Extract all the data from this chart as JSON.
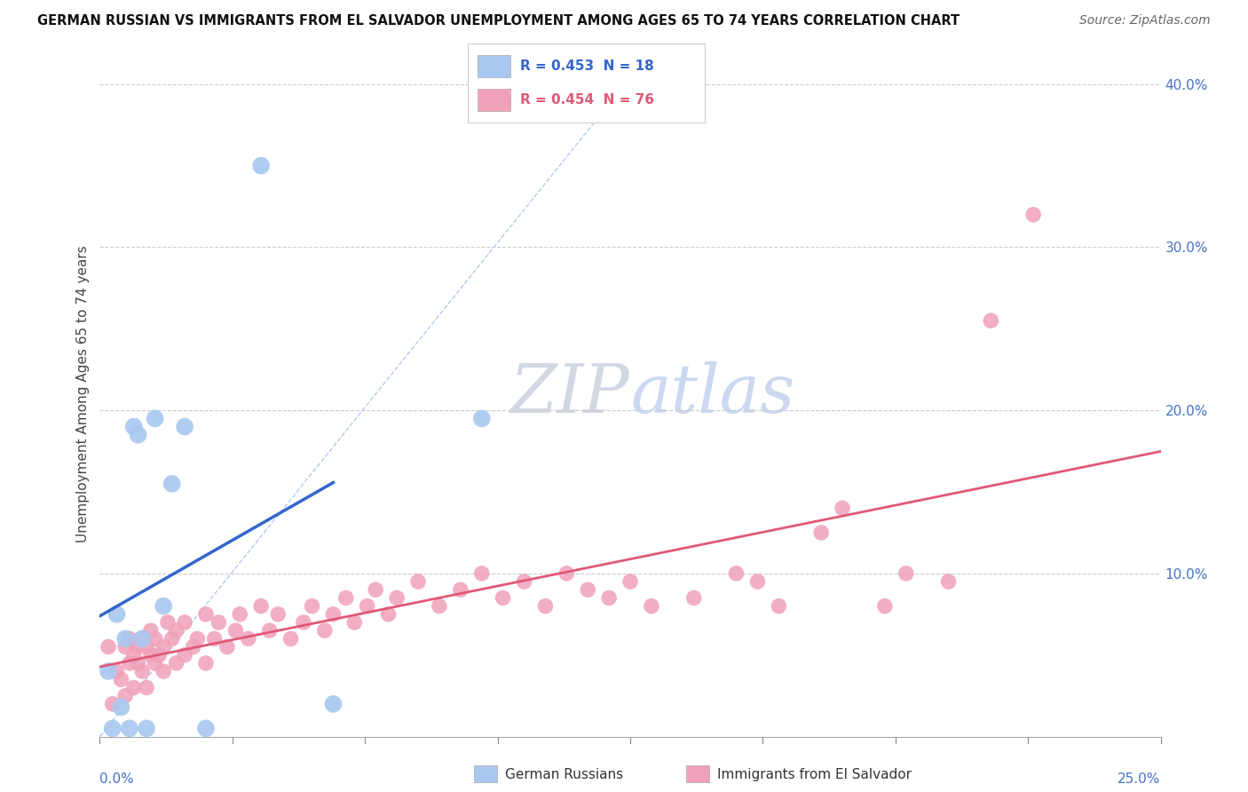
{
  "title": "GERMAN RUSSIAN VS IMMIGRANTS FROM EL SALVADOR UNEMPLOYMENT AMONG AGES 65 TO 74 YEARS CORRELATION CHART",
  "source": "Source: ZipAtlas.com",
  "ylabel": "Unemployment Among Ages 65 to 74 years",
  "xlim": [
    0.0,
    0.25
  ],
  "ylim": [
    0.0,
    0.42
  ],
  "ytick_values": [
    0.0,
    0.1,
    0.2,
    0.3,
    0.4
  ],
  "ytick_labels": [
    "",
    "10.0%",
    "20.0%",
    "30.0%",
    "40.0%"
  ],
  "blue_color": "#a8c8f0",
  "pink_color": "#f0a0b8",
  "blue_line_color": "#3366cc",
  "pink_line_color": "#e05878",
  "dash_color": "#aac4e8",
  "watermark_zip": "#c8d0e0",
  "watermark_atlas": "#b8c8e8",
  "blue_x": [
    0.002,
    0.003,
    0.004,
    0.005,
    0.006,
    0.007,
    0.008,
    0.009,
    0.01,
    0.011,
    0.013,
    0.015,
    0.017,
    0.02,
    0.025,
    0.038,
    0.055,
    0.09
  ],
  "blue_y": [
    0.04,
    0.005,
    0.075,
    0.018,
    0.06,
    0.005,
    0.19,
    0.185,
    0.06,
    0.005,
    0.195,
    0.08,
    0.155,
    0.19,
    0.005,
    0.35,
    0.02,
    0.195
  ],
  "pink_x": [
    0.002,
    0.003,
    0.004,
    0.005,
    0.006,
    0.006,
    0.007,
    0.007,
    0.008,
    0.008,
    0.009,
    0.009,
    0.01,
    0.01,
    0.011,
    0.011,
    0.012,
    0.012,
    0.013,
    0.013,
    0.014,
    0.015,
    0.015,
    0.016,
    0.017,
    0.018,
    0.018,
    0.02,
    0.02,
    0.022,
    0.023,
    0.025,
    0.025,
    0.027,
    0.028,
    0.03,
    0.032,
    0.033,
    0.035,
    0.038,
    0.04,
    0.042,
    0.045,
    0.048,
    0.05,
    0.053,
    0.055,
    0.058,
    0.06,
    0.063,
    0.065,
    0.068,
    0.07,
    0.075,
    0.08,
    0.085,
    0.09,
    0.095,
    0.1,
    0.105,
    0.11,
    0.115,
    0.12,
    0.125,
    0.13,
    0.14,
    0.15,
    0.155,
    0.16,
    0.17,
    0.175,
    0.185,
    0.19,
    0.2,
    0.21,
    0.22
  ],
  "pink_y": [
    0.055,
    0.02,
    0.04,
    0.035,
    0.055,
    0.025,
    0.045,
    0.06,
    0.05,
    0.03,
    0.045,
    0.055,
    0.04,
    0.06,
    0.055,
    0.03,
    0.05,
    0.065,
    0.045,
    0.06,
    0.05,
    0.055,
    0.04,
    0.07,
    0.06,
    0.045,
    0.065,
    0.05,
    0.07,
    0.055,
    0.06,
    0.045,
    0.075,
    0.06,
    0.07,
    0.055,
    0.065,
    0.075,
    0.06,
    0.08,
    0.065,
    0.075,
    0.06,
    0.07,
    0.08,
    0.065,
    0.075,
    0.085,
    0.07,
    0.08,
    0.09,
    0.075,
    0.085,
    0.095,
    0.08,
    0.09,
    0.1,
    0.085,
    0.095,
    0.08,
    0.1,
    0.09,
    0.085,
    0.095,
    0.08,
    0.085,
    0.1,
    0.095,
    0.08,
    0.125,
    0.14,
    0.08,
    0.1,
    0.095,
    0.255,
    0.32
  ]
}
